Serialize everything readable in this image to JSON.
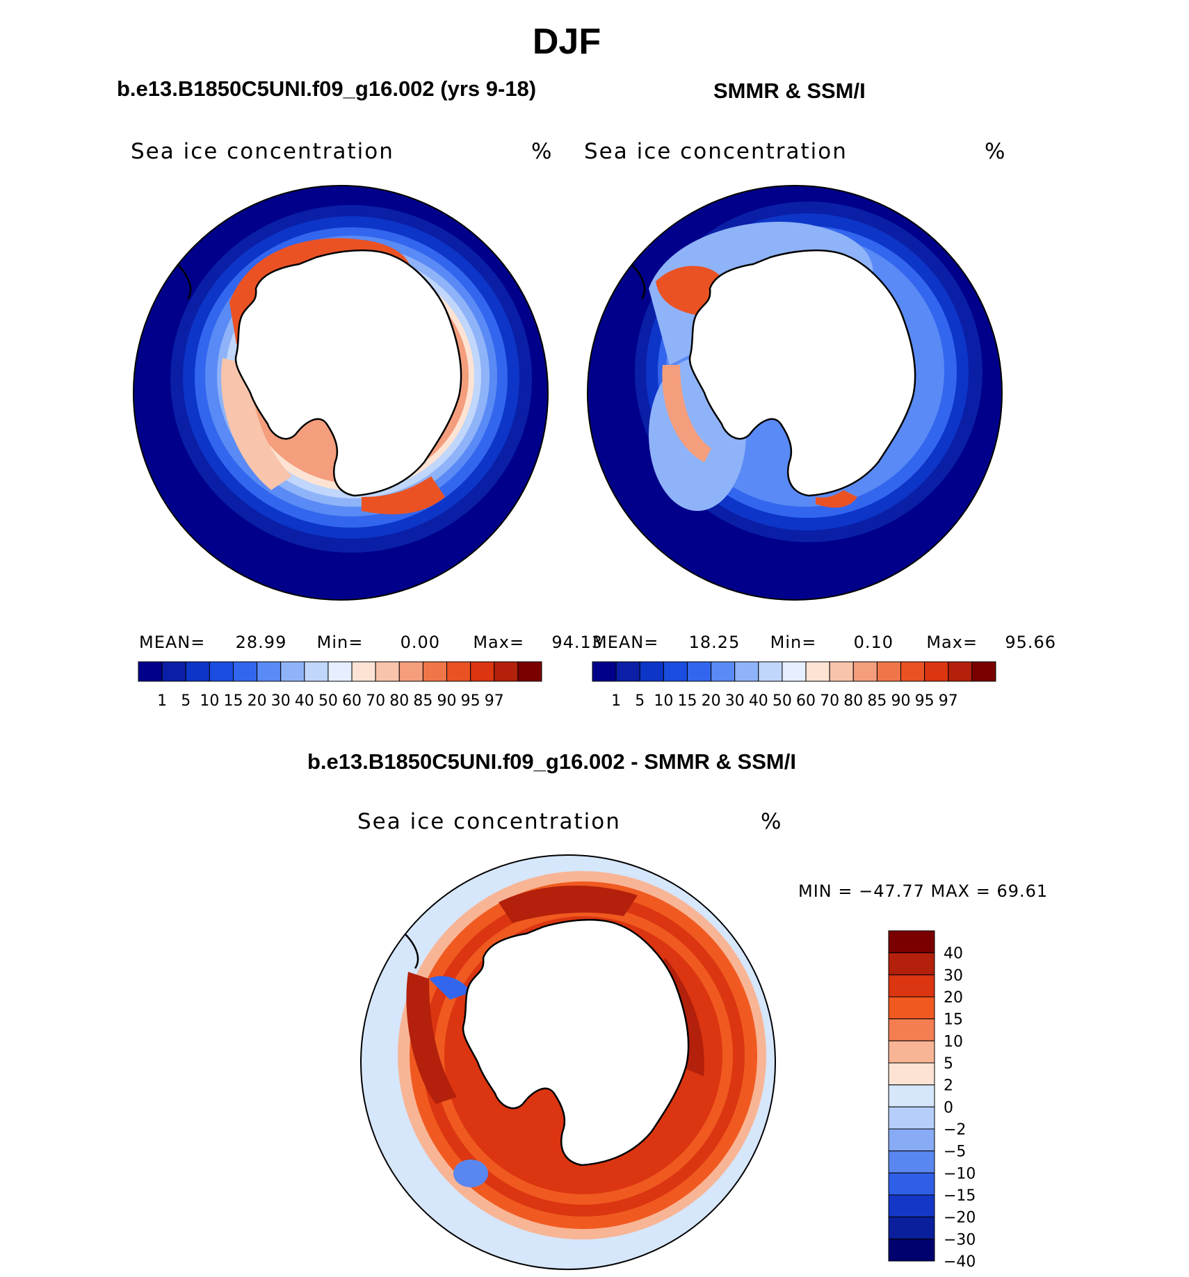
{
  "figure": {
    "title": "DJF",
    "panel_left": {
      "heading": "b.e13.B1850C5UNI.f09_g16.002 (yrs 9-18)",
      "variable": "Sea ice concentration",
      "units": "%",
      "stats": {
        "mean_label": "MEAN=",
        "mean_value": "28.99",
        "min_label": "Min=",
        "min_value": "0.00",
        "max_label": "Max=",
        "max_value": "94.13"
      }
    },
    "panel_right": {
      "heading": "SMMR & SSM/I",
      "variable": "Sea ice concentration",
      "units": "%",
      "stats": {
        "mean_label": "MEAN=",
        "mean_value": "18.25",
        "min_label": "Min=",
        "min_value": "0.10",
        "max_label": "Max=",
        "max_value": "95.66"
      }
    },
    "panel_diff": {
      "heading": "b.e13.B1850C5UNI.f09_g16.002 - SMMR & SSM/I",
      "variable": "Sea ice concentration",
      "units": "%",
      "minmax": "MIN = −47.77 MAX =   69.61"
    },
    "colorbar_concentration": {
      "colors": [
        "#00008b",
        "#0a1fa6",
        "#0d35c8",
        "#1a4de0",
        "#3366ee",
        "#5a8af5",
        "#8fb3f8",
        "#c0d6fb",
        "#e5efff",
        "#fde3d3",
        "#f8c4ab",
        "#f49e7d",
        "#ef7648",
        "#ea5224",
        "#db3511",
        "#b3200b",
        "#7a0000"
      ],
      "ticks": [
        "1",
        "5",
        "10",
        "15",
        "20",
        "30",
        "40",
        "50",
        "60",
        "70",
        "80",
        "85",
        "90",
        "95",
        "97"
      ]
    },
    "colorbar_difference": {
      "colors": [
        "#7a0000",
        "#b3200b",
        "#db3511",
        "#f05a20",
        "#f47e52",
        "#f8b596",
        "#fde3d3",
        "#d6e6fb",
        "#b6cffa",
        "#88abf5",
        "#5a87ef",
        "#2f5fe6",
        "#1437c7",
        "#0a1f9c",
        "#00006e"
      ],
      "ticks": [
        "40",
        "30",
        "20",
        "15",
        "10",
        "5",
        "2",
        "0",
        "−2",
        "−5",
        "−10",
        "−15",
        "−20",
        "−30",
        "−40"
      ]
    }
  }
}
